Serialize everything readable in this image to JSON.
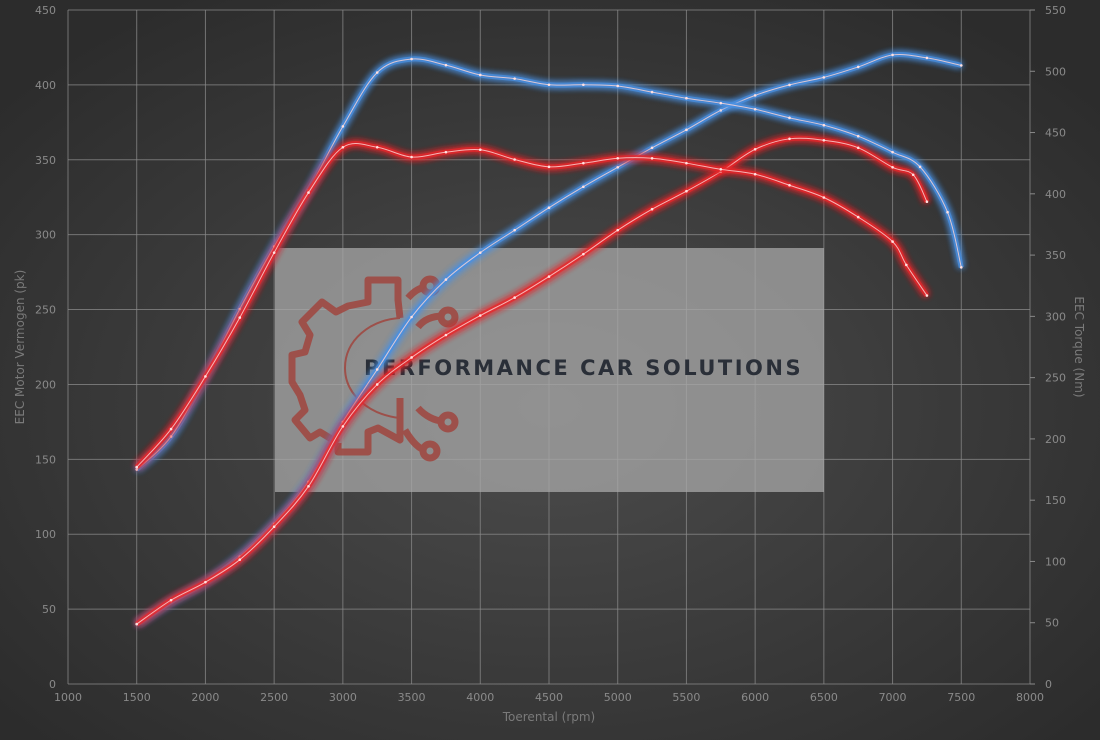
{
  "chart_data": {
    "type": "line",
    "title": "",
    "xlabel": "Toerental (rpm)",
    "ylabel_left": "EEC Motor Vermogen (pk)",
    "ylabel_right": "EEC Torque (Nm)",
    "xlim": [
      1000,
      8000
    ],
    "ylim_left": [
      0,
      450
    ],
    "ylim_right": [
      0,
      550
    ],
    "x_ticks": [
      1000,
      1500,
      2000,
      2500,
      3000,
      3500,
      4000,
      4500,
      5000,
      5500,
      6000,
      6500,
      7000,
      7500,
      8000
    ],
    "y_left_ticks": [
      0,
      50,
      100,
      150,
      200,
      250,
      300,
      350,
      400,
      450
    ],
    "y_right_ticks": [
      0,
      50,
      100,
      150,
      200,
      250,
      300,
      350,
      400,
      450,
      500,
      550
    ],
    "grid": true,
    "legend": "none",
    "series": [
      {
        "axis": "left",
        "color": "#4a90e2",
        "x": [
          1500,
          1750,
          2000,
          2250,
          2500,
          2750,
          3000,
          3250,
          3500,
          3750,
          4000,
          4250,
          4500,
          4750,
          5000,
          5250,
          5500,
          5750,
          6000,
          6250,
          6500,
          6750,
          7000,
          7250,
          7500
        ],
        "values": [
          40,
          55,
          68,
          85,
          107,
          135,
          175,
          210,
          245,
          270,
          288,
          303,
          318,
          332,
          345,
          358,
          370,
          383,
          393,
          400,
          405,
          412,
          420,
          418,
          413
        ]
      },
      {
        "axis": "left",
        "color": "#e8262a",
        "x": [
          1500,
          1750,
          2000,
          2250,
          2500,
          2750,
          3000,
          3250,
          3500,
          3750,
          4000,
          4250,
          4500,
          4750,
          5000,
          5250,
          5500,
          5750,
          6000,
          6250,
          6500,
          6750,
          7000,
          7150,
          7250
        ],
        "values": [
          40,
          56,
          68,
          83,
          105,
          132,
          172,
          200,
          218,
          233,
          246,
          258,
          272,
          287,
          303,
          317,
          329,
          342,
          357,
          364,
          363,
          358,
          345,
          340,
          322
        ]
      },
      {
        "axis": "right",
        "color": "#4a90e2",
        "x": [
          1500,
          1750,
          2000,
          2250,
          2500,
          2750,
          3000,
          3250,
          3500,
          3750,
          4000,
          4250,
          4500,
          4750,
          5000,
          5250,
          5500,
          5750,
          6000,
          6250,
          6500,
          6750,
          7000,
          7200,
          7400,
          7500
        ],
        "values": [
          175,
          202,
          251,
          306,
          357,
          403,
          455,
          499,
          510,
          505,
          497,
          494,
          489,
          489,
          488,
          483,
          478,
          474,
          469,
          462,
          456,
          447,
          434,
          422,
          385,
          340
        ]
      },
      {
        "axis": "right",
        "color": "#e8262a",
        "x": [
          1500,
          1750,
          2000,
          2250,
          2500,
          2750,
          3000,
          3250,
          3500,
          3750,
          4000,
          4250,
          4500,
          4750,
          5000,
          5250,
          5500,
          5750,
          6000,
          6250,
          6500,
          6750,
          7000,
          7100,
          7250
        ],
        "values": [
          177,
          208,
          251,
          299,
          352,
          401,
          438,
          438,
          430,
          434,
          436,
          428,
          422,
          425,
          429,
          429,
          425,
          420,
          416,
          407,
          397,
          381,
          361,
          342,
          317
        ]
      }
    ]
  },
  "watermark": {
    "text": "PERFORMANCE CAR SOLUTIONS",
    "logo_color": "#a0463f",
    "box_color": "#a8a8a8"
  }
}
